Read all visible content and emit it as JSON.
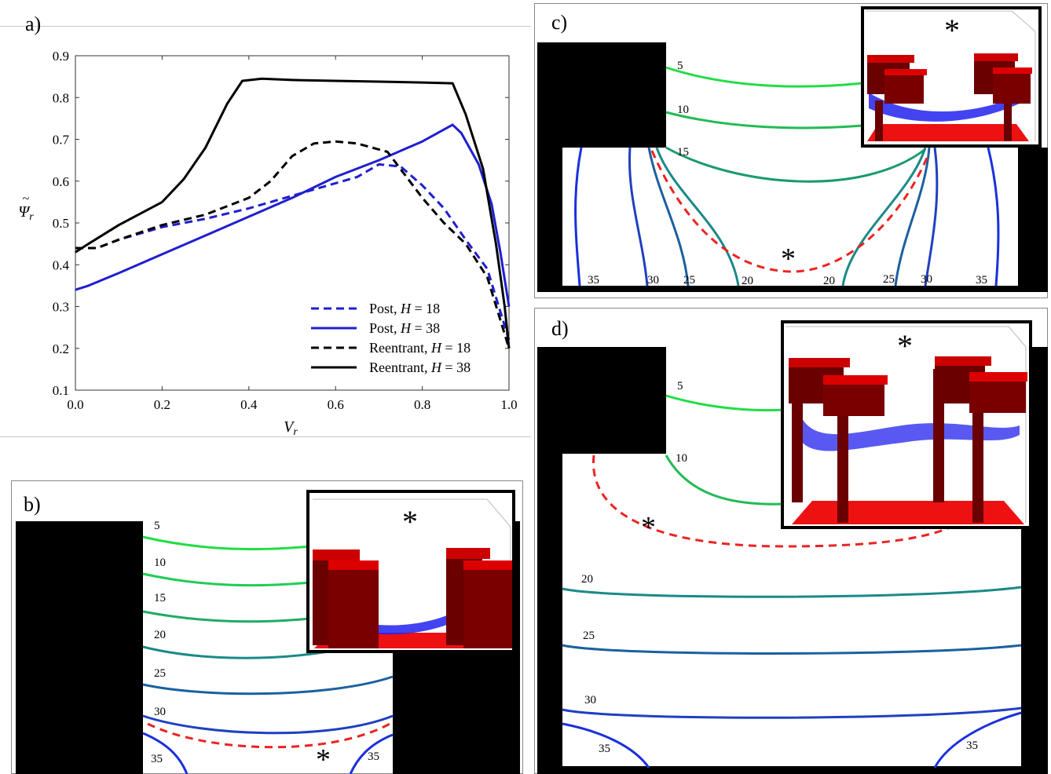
{
  "panel_labels": {
    "a": "a)",
    "b": "b)",
    "c": "c)",
    "d": "d)"
  },
  "chart_data": {
    "type": "line",
    "title": "",
    "xlabel": "V_r",
    "ylabel": "Ψ̃_r",
    "xlim": [
      0.0,
      1.0
    ],
    "ylim": [
      0.1,
      0.9
    ],
    "xticks": [
      "0.0",
      "0.2",
      "0.4",
      "0.6",
      "0.8",
      "1.0"
    ],
    "yticks": [
      "0.1",
      "0.2",
      "0.3",
      "0.4",
      "0.5",
      "0.6",
      "0.7",
      "0.8",
      "0.9"
    ],
    "grid": false,
    "legend_position": "bottom-right",
    "series": [
      {
        "name": "Post, H = 18",
        "label_main": "Post, ",
        "label_var": "H",
        "label_val": " = 18",
        "color": "#1f1fd0",
        "dash": true,
        "x": [
          0.0,
          0.05,
          0.1,
          0.2,
          0.3,
          0.4,
          0.5,
          0.6,
          0.65,
          0.7,
          0.75,
          0.8,
          0.85,
          0.9,
          0.95,
          1.0
        ],
        "y": [
          0.44,
          0.44,
          0.46,
          0.49,
          0.51,
          0.535,
          0.565,
          0.595,
          0.61,
          0.64,
          0.635,
          0.59,
          0.535,
          0.46,
          0.39,
          0.22
        ]
      },
      {
        "name": "Post, H = 38",
        "label_main": "Post, ",
        "label_var": "H",
        "label_val": " = 38",
        "color": "#1f1fd0",
        "dash": false,
        "x": [
          0.0,
          0.03,
          0.1,
          0.2,
          0.3,
          0.4,
          0.5,
          0.6,
          0.7,
          0.8,
          0.87,
          0.89,
          0.93,
          0.96,
          0.98,
          1.0
        ],
        "y": [
          0.34,
          0.35,
          0.38,
          0.425,
          0.47,
          0.515,
          0.56,
          0.61,
          0.65,
          0.695,
          0.735,
          0.715,
          0.64,
          0.545,
          0.43,
          0.3
        ]
      },
      {
        "name": "Reentrant, H = 18",
        "label_main": "Reentrant, ",
        "label_var": "H",
        "label_val": " = 18",
        "color": "#000000",
        "dash": true,
        "x": [
          0.0,
          0.05,
          0.1,
          0.2,
          0.3,
          0.4,
          0.45,
          0.5,
          0.55,
          0.6,
          0.65,
          0.72,
          0.8,
          0.85,
          0.9,
          0.95,
          1.0
        ],
        "y": [
          0.44,
          0.44,
          0.46,
          0.495,
          0.52,
          0.56,
          0.6,
          0.66,
          0.69,
          0.695,
          0.69,
          0.67,
          0.56,
          0.5,
          0.45,
          0.37,
          0.2
        ]
      },
      {
        "name": "Reentrant, H = 38",
        "label_main": "Reentrant, ",
        "label_var": "H",
        "label_val": " = 38",
        "color": "#000000",
        "dash": false,
        "x": [
          0.0,
          0.03,
          0.1,
          0.2,
          0.25,
          0.3,
          0.35,
          0.385,
          0.43,
          0.5,
          0.6,
          0.7,
          0.8,
          0.87,
          0.9,
          0.94,
          0.97,
          0.99,
          1.0
        ],
        "y": [
          0.43,
          0.45,
          0.495,
          0.55,
          0.605,
          0.68,
          0.785,
          0.84,
          0.845,
          0.842,
          0.84,
          0.838,
          0.836,
          0.834,
          0.76,
          0.63,
          0.45,
          0.3,
          0.2
        ]
      }
    ]
  },
  "panel_b": {
    "contour_labels": [
      "5",
      "10",
      "15",
      "20",
      "25",
      "30",
      "35",
      "35"
    ],
    "marker": "*",
    "inset_marker": "*"
  },
  "panel_c": {
    "contour_labels": [
      "5",
      "10",
      "15",
      "35",
      "30",
      "25",
      "20",
      "20",
      "25",
      "30",
      "35"
    ],
    "marker": "*",
    "inset_marker": "*"
  },
  "panel_d": {
    "contour_labels": [
      "5",
      "10",
      "20",
      "25",
      "30",
      "35",
      "35"
    ],
    "marker": "*",
    "inset_marker": "*"
  },
  "colors": {
    "post": "#1f1fd0",
    "reentrant": "#000000",
    "pinning": "#ee2222"
  }
}
